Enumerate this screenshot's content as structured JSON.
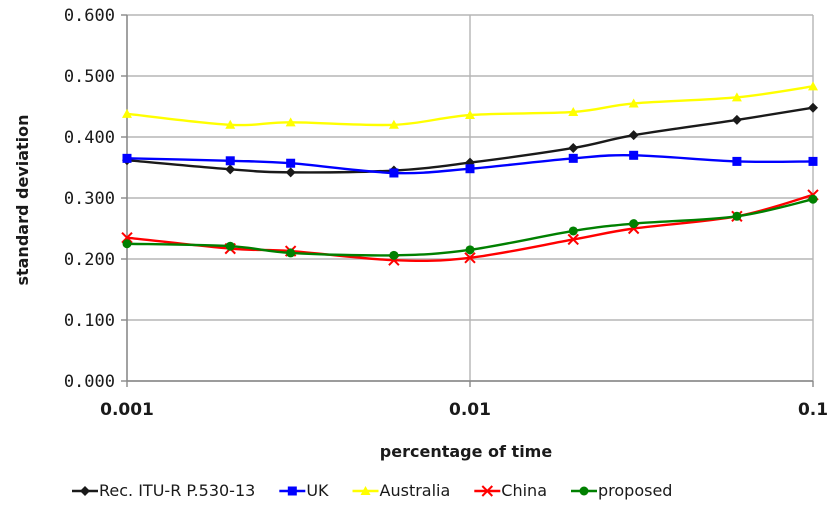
{
  "chart_data": {
    "type": "line",
    "xlabel": "percentage of time",
    "ylabel": "standard deviation",
    "x_scale": "log",
    "xlim": [
      0.001,
      0.1
    ],
    "ylim": [
      0,
      0.6
    ],
    "x_ticks": [
      "0.001",
      "0.01",
      "0.1"
    ],
    "y_ticks": [
      "0.000",
      "0.100",
      "0.200",
      "0.300",
      "0.400",
      "0.500",
      "0.600"
    ],
    "grid": true,
    "legend_position": "bottom",
    "x": [
      0.001,
      0.002,
      0.003,
      0.006,
      0.01,
      0.02,
      0.03,
      0.06,
      0.1
    ],
    "series": [
      {
        "name": "Rec. ITU-R P.530-13",
        "color": "#1a1a1a",
        "marker": "diamond",
        "values": [
          0.362,
          0.347,
          0.342,
          0.345,
          0.358,
          0.382,
          0.403,
          0.428,
          0.448
        ]
      },
      {
        "name": "UK",
        "color": "#0000ff",
        "marker": "square",
        "values": [
          0.365,
          0.361,
          0.357,
          0.341,
          0.348,
          0.365,
          0.37,
          0.36,
          0.36
        ]
      },
      {
        "name": "Australia",
        "color": "#ffff00",
        "marker": "triangle",
        "values": [
          0.438,
          0.42,
          0.424,
          0.42,
          0.436,
          0.441,
          0.455,
          0.465,
          0.483
        ]
      },
      {
        "name": "China",
        "color": "#ff0000",
        "marker": "cross",
        "values": [
          0.235,
          0.217,
          0.213,
          0.198,
          0.202,
          0.232,
          0.25,
          0.27,
          0.305
        ]
      },
      {
        "name": "proposed",
        "color": "#008000",
        "marker": "circle",
        "values": [
          0.225,
          0.221,
          0.21,
          0.206,
          0.215,
          0.246,
          0.258,
          0.27,
          0.298
        ]
      }
    ]
  }
}
